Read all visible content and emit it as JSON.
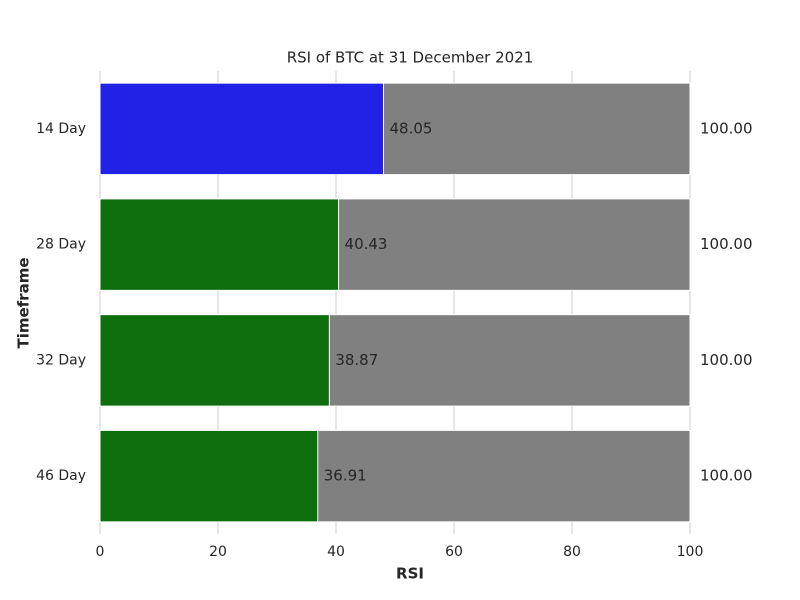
{
  "chart_data": {
    "type": "barh",
    "barmode": "overlay",
    "title": "RSI of BTC at 31 December 2021",
    "xlabel": "RSI",
    "ylabel": "Timeframe",
    "categories": [
      "14 Day",
      "28 Day",
      "32 Day",
      "46 Day"
    ],
    "series": [
      {
        "color": "#808080",
        "values": [
          100,
          100,
          100,
          100
        ],
        "value_labels": [
          "100.00",
          "100.00",
          "100.00",
          "100.00"
        ]
      },
      {
        "colors": [
          "#2222e6",
          "#0e6e0e",
          "#0e6e0e",
          "#0e6e0e"
        ],
        "values": [
          48.05,
          40.43,
          38.87,
          36.91
        ]
      }
    ],
    "xlim": [
      0,
      100
    ],
    "xticks": [
      0,
      20,
      40,
      60,
      80,
      100
    ],
    "grid": true
  }
}
